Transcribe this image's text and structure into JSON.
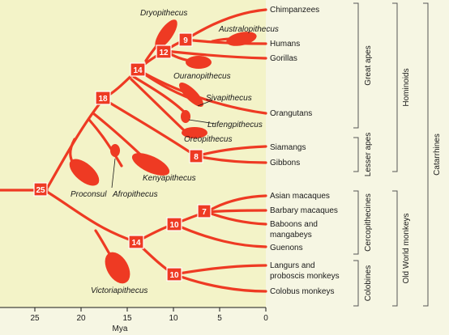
{
  "colors": {
    "background": "#f6f6e3",
    "plot_background": "#f3f3c8",
    "branch": "#ee3a23",
    "text": "#1a1a1a"
  },
  "tips": {
    "chimpanzees": "Chimpanzees",
    "humans": "Humans",
    "gorillas": "Gorillas",
    "orangutans": "Orangutans",
    "siamangs": "Siamangs",
    "gibbons": "Gibbons",
    "asian_macaques": "Asian macaques",
    "barbary_macaques": "Barbary macaques",
    "baboons_line1": "Baboons and",
    "baboons_line2": "mangabeys",
    "guenons": "Guenons",
    "langurs_line1": "Langurs and",
    "langurs_line2": "proboscis monkeys",
    "colobus": "Colobus monkeys"
  },
  "fossils": {
    "dryopithecus": "Dryopithecus",
    "australopithecus": "Australopithecus",
    "ouranopithecus": "Ouranopithecus",
    "sivapithecus": "Sivapithecus",
    "lufengpithecus": "Lufengpithecus",
    "oreopithecus": "Oreopithecus",
    "kenyapithecus": "Kenyapithecus",
    "proconsul": "Proconsul",
    "afropithecus": "Afropithecus",
    "victoriapithecus": "Victoriapithecus"
  },
  "nodes": {
    "n25": "25",
    "n18": "18",
    "n14_apes": "14",
    "n12": "12",
    "n9": "9",
    "n8": "8",
    "n14_monkeys": "14",
    "n10_cerco": "10",
    "n7": "7",
    "n10_colob": "10"
  },
  "axis": {
    "label": "Mya",
    "ticks": [
      "25",
      "20",
      "15",
      "10",
      "5",
      "0"
    ]
  },
  "groups": {
    "great_apes": "Great apes",
    "lesser_apes": "Lesser apes",
    "cercopithecines": "Cercopithecines",
    "colobines": "Colobines",
    "hominoids": "Hominoids",
    "old_world_monkeys": "Old World monkeys",
    "catarrhines": "Catarrhines"
  }
}
